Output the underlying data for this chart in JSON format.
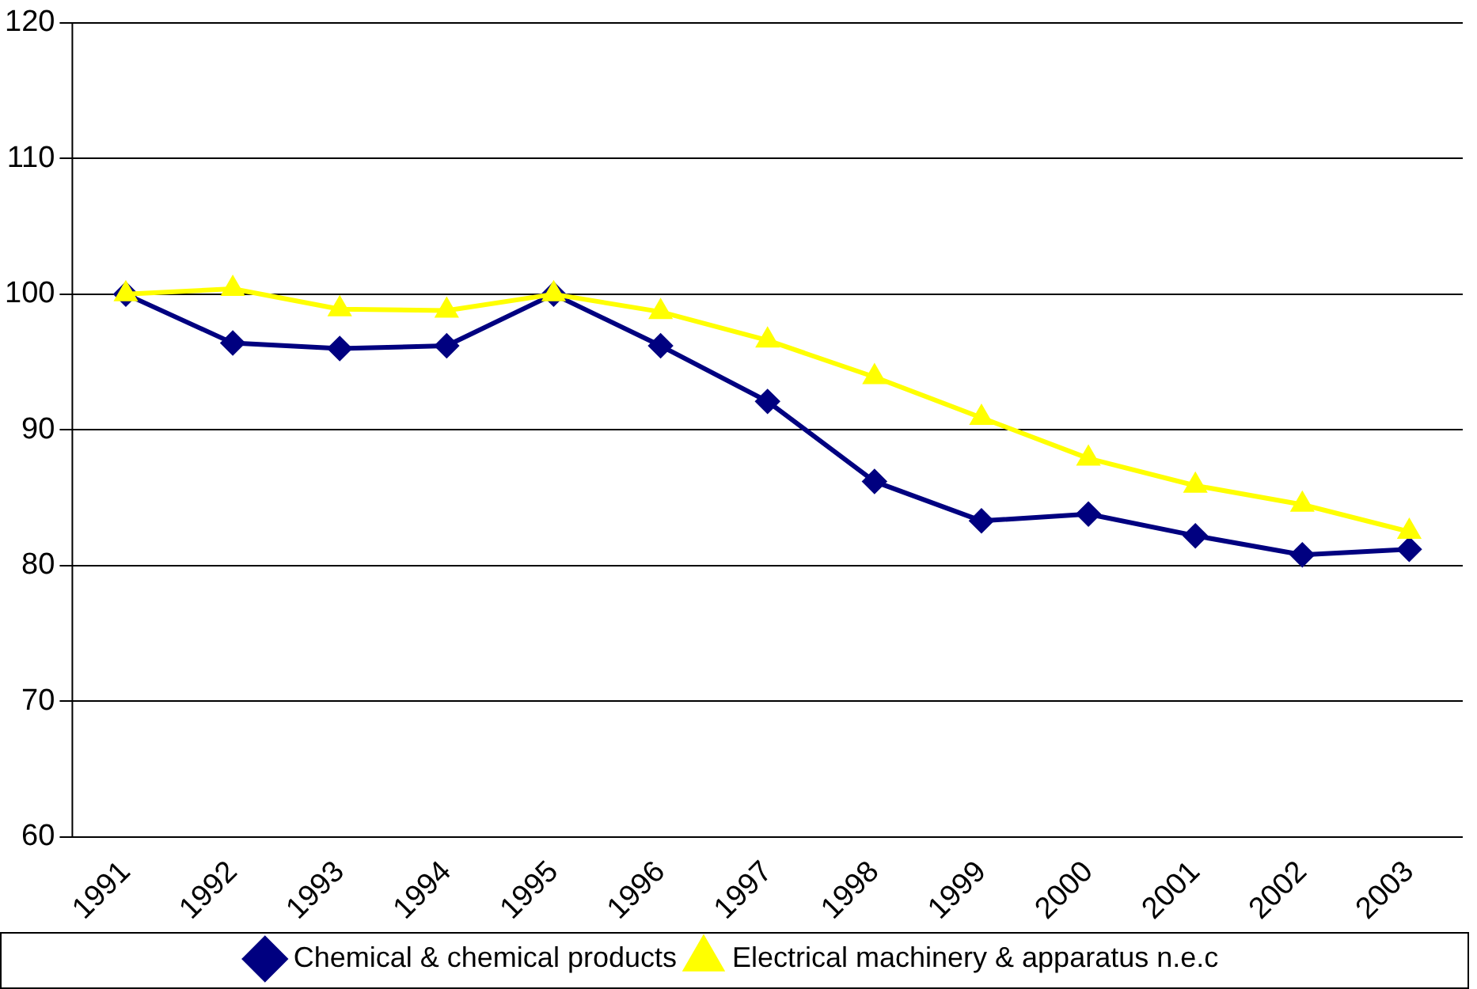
{
  "chart_data": {
    "type": "line",
    "categories": [
      "1991",
      "1992",
      "1993",
      "1994",
      "1995",
      "1996",
      "1997",
      "1998",
      "1999",
      "2000",
      "2001",
      "2002",
      "2003"
    ],
    "series": [
      {
        "name": "Chemical & chemical products",
        "color": "#000080",
        "marker": "diamond",
        "values": [
          100,
          96.4,
          96.0,
          96.2,
          100,
          96.2,
          92.1,
          86.2,
          83.3,
          83.8,
          82.2,
          80.8,
          81.2
        ]
      },
      {
        "name": "Electrical machinery & apparatus n.e.c",
        "color": "#ffff00",
        "marker": "triangle",
        "values": [
          100,
          100.4,
          98.9,
          98.8,
          100,
          98.7,
          96.6,
          93.9,
          90.9,
          87.9,
          85.9,
          84.5,
          82.5
        ]
      }
    ],
    "ylim": [
      60,
      120
    ],
    "yticks": [
      60,
      70,
      80,
      90,
      100,
      110,
      120
    ],
    "grid": "y",
    "legend": "bottom",
    "line_style": "solid"
  }
}
